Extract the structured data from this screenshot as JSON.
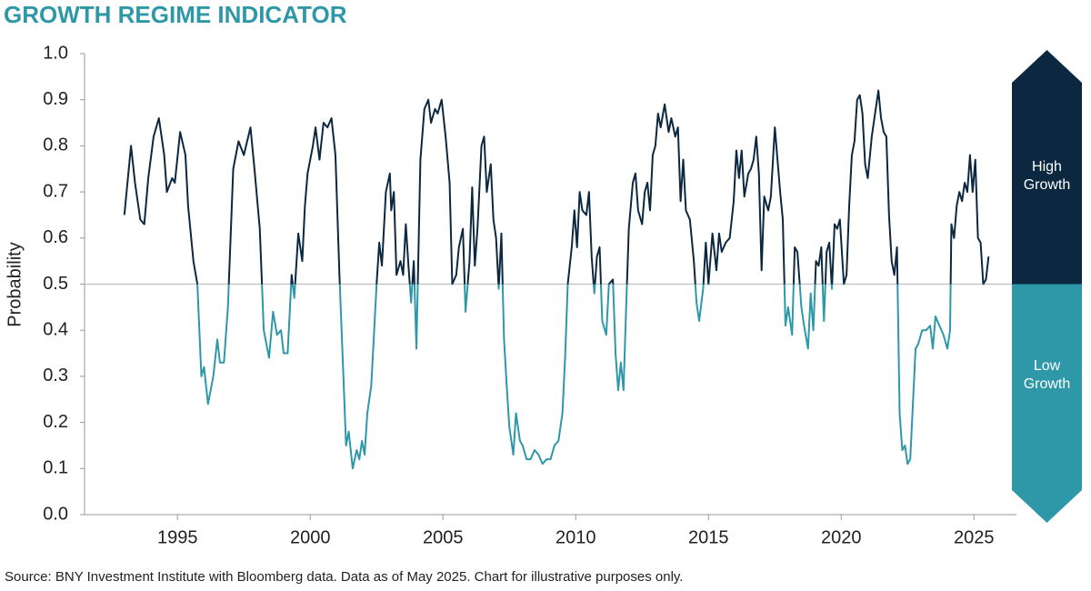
{
  "chart_data": {
    "type": "line",
    "title": "GROWTH REGIME INDICATOR",
    "y_label": "Probability",
    "source": "Source: BNY Investment Institute with Bloomberg data. Data as of May 2025. Chart for illustrative purposes only.",
    "regime_labels": {
      "high": "High Growth",
      "low": "Low Growth"
    },
    "reference_line": 0.5,
    "colors": {
      "high": "#0b2840",
      "low": "#2e98a8",
      "reference": "#bfbfbf"
    },
    "xlim": [
      1991.5,
      2026.6
    ],
    "xticks": [
      1995,
      2000,
      2005,
      2010,
      2015,
      2020,
      2025
    ],
    "ylim": [
      0,
      1
    ],
    "yticks": [
      {
        "value": 0,
        "label": "0.0"
      },
      0.1,
      0.2,
      0.3,
      0.4,
      0.5,
      0.6,
      0.7,
      0.8,
      0.9,
      {
        "value": 1,
        "label": "1.0"
      }
    ],
    "x": [
      1993.0,
      1993.25,
      1993.4,
      1993.6,
      1993.75,
      1993.9,
      1994.1,
      1994.3,
      1994.5,
      1994.6,
      1994.8,
      1994.9,
      1995.1,
      1995.3,
      1995.4,
      1995.6,
      1995.75,
      1995.9,
      1996.0,
      1996.15,
      1996.35,
      1996.5,
      1996.6,
      1996.75,
      1996.9,
      1997.1,
      1997.3,
      1997.5,
      1997.75,
      1997.9,
      1998.1,
      1998.25,
      1998.45,
      1998.6,
      1998.75,
      1998.9,
      1999.0,
      1999.15,
      1999.3,
      1999.4,
      1999.55,
      1999.7,
      1999.8,
      1999.9,
      2000.1,
      2000.2,
      2000.35,
      2000.5,
      2000.65,
      2000.8,
      2000.95,
      2001.1,
      2001.25,
      2001.35,
      2001.45,
      2001.6,
      2001.75,
      2001.85,
      2001.95,
      2002.05,
      2002.15,
      2002.3,
      2002.5,
      2002.6,
      2002.7,
      2002.85,
      2003.0,
      2003.05,
      2003.15,
      2003.25,
      2003.4,
      2003.5,
      2003.6,
      2003.7,
      2003.8,
      2003.9,
      2004.0,
      2004.15,
      2004.3,
      2004.45,
      2004.55,
      2004.7,
      2004.8,
      2004.95,
      2005.1,
      2005.25,
      2005.35,
      2005.5,
      2005.6,
      2005.75,
      2005.85,
      2006.0,
      2006.1,
      2006.2,
      2006.3,
      2006.45,
      2006.55,
      2006.65,
      2006.8,
      2006.9,
      2007.0,
      2007.1,
      2007.2,
      2007.3,
      2007.4,
      2007.5,
      2007.65,
      2007.75,
      2007.9,
      2008.0,
      2008.15,
      2008.3,
      2008.45,
      2008.6,
      2008.75,
      2008.9,
      2009.05,
      2009.2,
      2009.35,
      2009.5,
      2009.6,
      2009.7,
      2009.85,
      2009.95,
      2010.05,
      2010.15,
      2010.25,
      2010.4,
      2010.5,
      2010.6,
      2010.7,
      2010.8,
      2010.9,
      2011.0,
      2011.15,
      2011.25,
      2011.4,
      2011.5,
      2011.6,
      2011.7,
      2011.8,
      2011.9,
      2012.0,
      2012.15,
      2012.25,
      2012.35,
      2012.5,
      2012.6,
      2012.7,
      2012.8,
      2012.9,
      2013.0,
      2013.1,
      2013.2,
      2013.35,
      2013.5,
      2013.6,
      2013.75,
      2013.85,
      2013.95,
      2014.05,
      2014.15,
      2014.3,
      2014.45,
      2014.55,
      2014.65,
      2014.8,
      2014.9,
      2015.0,
      2015.15,
      2015.3,
      2015.4,
      2015.5,
      2015.65,
      2015.8,
      2015.95,
      2016.05,
      2016.15,
      2016.25,
      2016.35,
      2016.5,
      2016.6,
      2016.7,
      2016.8,
      2016.9,
      2017.0,
      2017.1,
      2017.25,
      2017.35,
      2017.5,
      2017.6,
      2017.7,
      2017.8,
      2017.9,
      2018.0,
      2018.15,
      2018.25,
      2018.35,
      2018.5,
      2018.6,
      2018.75,
      2018.85,
      2018.95,
      2019.05,
      2019.15,
      2019.25,
      2019.35,
      2019.45,
      2019.55,
      2019.65,
      2019.75,
      2019.85,
      2019.95,
      2020.1,
      2020.2,
      2020.3,
      2020.4,
      2020.5,
      2020.6,
      2020.7,
      2020.8,
      2020.9,
      2021.0,
      2021.15,
      2021.3,
      2021.4,
      2021.5,
      2021.6,
      2021.7,
      2021.8,
      2021.9,
      2022.0,
      2022.1,
      2022.2,
      2022.3,
      2022.4,
      2022.5,
      2022.6,
      2022.7,
      2022.8,
      2022.9,
      2023.05,
      2023.2,
      2023.35,
      2023.45,
      2023.55,
      2023.7,
      2023.85,
      2024.0,
      2024.1,
      2024.15,
      2024.25,
      2024.35,
      2024.45,
      2024.55,
      2024.65,
      2024.75,
      2024.85,
      2024.95,
      2025.05,
      2025.15,
      2025.25,
      2025.35,
      2025.45,
      2025.55
    ],
    "values": [
      0.65,
      0.8,
      0.72,
      0.64,
      0.63,
      0.73,
      0.82,
      0.86,
      0.78,
      0.7,
      0.73,
      0.72,
      0.83,
      0.78,
      0.67,
      0.55,
      0.5,
      0.3,
      0.32,
      0.24,
      0.3,
      0.38,
      0.33,
      0.33,
      0.45,
      0.75,
      0.81,
      0.78,
      0.84,
      0.75,
      0.62,
      0.4,
      0.34,
      0.44,
      0.39,
      0.4,
      0.35,
      0.35,
      0.52,
      0.47,
      0.61,
      0.55,
      0.67,
      0.74,
      0.8,
      0.84,
      0.77,
      0.85,
      0.84,
      0.86,
      0.78,
      0.52,
      0.3,
      0.15,
      0.18,
      0.1,
      0.14,
      0.12,
      0.16,
      0.13,
      0.22,
      0.28,
      0.5,
      0.59,
      0.54,
      0.7,
      0.74,
      0.66,
      0.7,
      0.52,
      0.55,
      0.52,
      0.63,
      0.54,
      0.46,
      0.55,
      0.36,
      0.77,
      0.88,
      0.9,
      0.85,
      0.88,
      0.87,
      0.9,
      0.82,
      0.72,
      0.5,
      0.52,
      0.58,
      0.62,
      0.44,
      0.55,
      0.71,
      0.54,
      0.62,
      0.8,
      0.82,
      0.7,
      0.76,
      0.64,
      0.6,
      0.49,
      0.61,
      0.38,
      0.28,
      0.19,
      0.13,
      0.22,
      0.16,
      0.15,
      0.12,
      0.12,
      0.14,
      0.13,
      0.11,
      0.12,
      0.12,
      0.15,
      0.16,
      0.22,
      0.34,
      0.5,
      0.58,
      0.66,
      0.58,
      0.7,
      0.66,
      0.65,
      0.7,
      0.56,
      0.48,
      0.56,
      0.58,
      0.42,
      0.39,
      0.5,
      0.51,
      0.35,
      0.27,
      0.33,
      0.27,
      0.45,
      0.62,
      0.72,
      0.74,
      0.66,
      0.63,
      0.7,
      0.72,
      0.66,
      0.78,
      0.8,
      0.87,
      0.84,
      0.89,
      0.83,
      0.86,
      0.82,
      0.84,
      0.68,
      0.77,
      0.66,
      0.64,
      0.55,
      0.46,
      0.42,
      0.49,
      0.59,
      0.5,
      0.61,
      0.53,
      0.61,
      0.57,
      0.59,
      0.6,
      0.68,
      0.79,
      0.73,
      0.79,
      0.69,
      0.74,
      0.75,
      0.77,
      0.82,
      0.74,
      0.53,
      0.69,
      0.66,
      0.69,
      0.84,
      0.77,
      0.7,
      0.64,
      0.41,
      0.45,
      0.39,
      0.58,
      0.57,
      0.45,
      0.41,
      0.36,
      0.48,
      0.4,
      0.55,
      0.54,
      0.58,
      0.42,
      0.57,
      0.59,
      0.49,
      0.63,
      0.62,
      0.64,
      0.5,
      0.52,
      0.67,
      0.78,
      0.81,
      0.9,
      0.91,
      0.87,
      0.76,
      0.73,
      0.82,
      0.88,
      0.92,
      0.86,
      0.83,
      0.82,
      0.65,
      0.55,
      0.52,
      0.58,
      0.22,
      0.14,
      0.15,
      0.11,
      0.12,
      0.24,
      0.36,
      0.37,
      0.4,
      0.4,
      0.41,
      0.36,
      0.43,
      0.41,
      0.39,
      0.36,
      0.4,
      0.63,
      0.6,
      0.67,
      0.7,
      0.68,
      0.72,
      0.7,
      0.78,
      0.7,
      0.77,
      0.6,
      0.59,
      0.5,
      0.51,
      0.56
    ]
  }
}
